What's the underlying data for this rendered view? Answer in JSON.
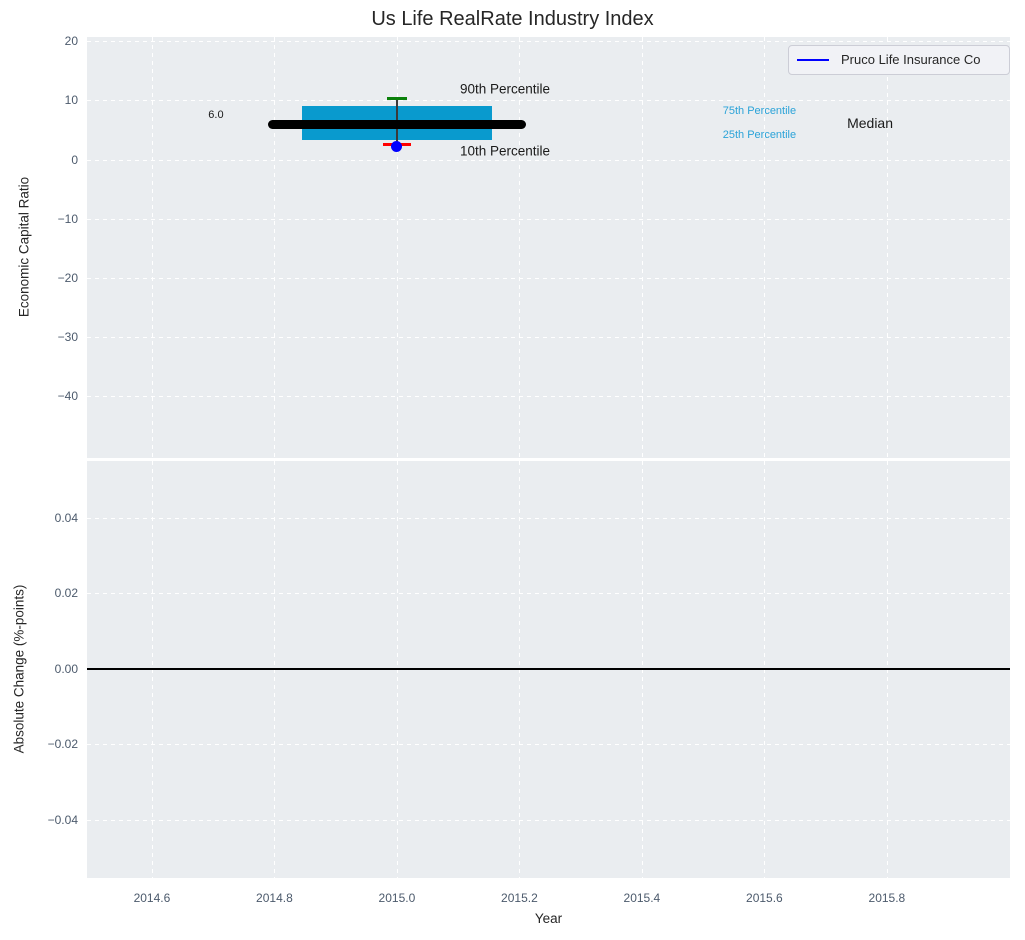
{
  "title": "Us Life RealRate Industry Index",
  "legend": {
    "label": "Pruco Life Insurance Co",
    "line_color": "#0000ff"
  },
  "colors": {
    "plot_background": "#eaedf0",
    "grid": "#ffffff",
    "tick_label": "#4c5a6c",
    "box_fill": "#099ace",
    "median_line": "#000000",
    "p90_cap": "#0a800a",
    "p10_cap": "#ff0000",
    "company_dot": "#0000ff",
    "percentile_label": "#2ba3d8",
    "zero_line": "#000000"
  },
  "chart_data": [
    {
      "type": "boxplot",
      "title": "Us Life RealRate Industry Index",
      "ylabel": "Economic Capital Ratio",
      "xlim": [
        2014.494,
        2016.001
      ],
      "ylim": [
        -50.4,
        20.7
      ],
      "grid": true,
      "legend_position": "upper right",
      "legend_entries": [
        "Pruco Life Insurance Co"
      ],
      "yticks": [
        20,
        10,
        0,
        -10,
        -20,
        -30,
        -40
      ],
      "ytick_labels": [
        "20",
        "10",
        "0",
        "−10",
        "−20",
        "−30",
        "−40"
      ],
      "box": {
        "x": 2015.0,
        "box_halfwidth": 0.155,
        "median_halfwidth": 0.21,
        "cap_halfwidth": 0.016,
        "p10_cap_halfwidth": 0.023,
        "median": 6.0,
        "median_label": "6.0",
        "q1": 3.3,
        "q3": 9.1,
        "p10": 2.6,
        "p90": 10.3,
        "company_value": 2.2
      },
      "annotations": [
        {
          "text": "6.0",
          "x": 2014.692,
          "y": 7.5,
          "color": "#1a1a1a",
          "size": 11
        },
        {
          "text": "90th Percentile",
          "x": 2015.103,
          "y": 11.9,
          "color": "#1a1a1a",
          "size": 13.5
        },
        {
          "text": "10th Percentile",
          "x": 2015.103,
          "y": 1.4,
          "color": "#1a1a1a",
          "size": 13.5
        },
        {
          "text": "75th Percentile",
          "x": 2015.532,
          "y": 8.2,
          "color": "#2ba3d8",
          "size": 11
        },
        {
          "text": "25th Percentile",
          "x": 2015.532,
          "y": 4.2,
          "color": "#2ba3d8",
          "size": 11
        },
        {
          "text": "Median",
          "x": 2015.735,
          "y": 6.1,
          "color": "#1a1a1a",
          "size": 14
        }
      ]
    },
    {
      "type": "line",
      "ylabel": "Absolute Change (%-points)",
      "xlabel": "Year",
      "xlim": [
        2014.494,
        2016.001
      ],
      "ylim": [
        -0.0555,
        0.055
      ],
      "grid": true,
      "yticks": [
        0.04,
        0.02,
        0.0,
        -0.02,
        -0.04
      ],
      "ytick_labels": [
        "0.04",
        "0.02",
        "0.00",
        "−0.02",
        "−0.04"
      ],
      "zero_line_y": 0.0,
      "series": []
    }
  ],
  "x_axis": {
    "label": "Year",
    "xticks": [
      2014.6,
      2014.8,
      2015.0,
      2015.2,
      2015.4,
      2015.6,
      2015.8
    ],
    "xtick_labels": [
      "2014.6",
      "2014.8",
      "2015.0",
      "2015.2",
      "2015.4",
      "2015.6",
      "2015.8"
    ]
  }
}
